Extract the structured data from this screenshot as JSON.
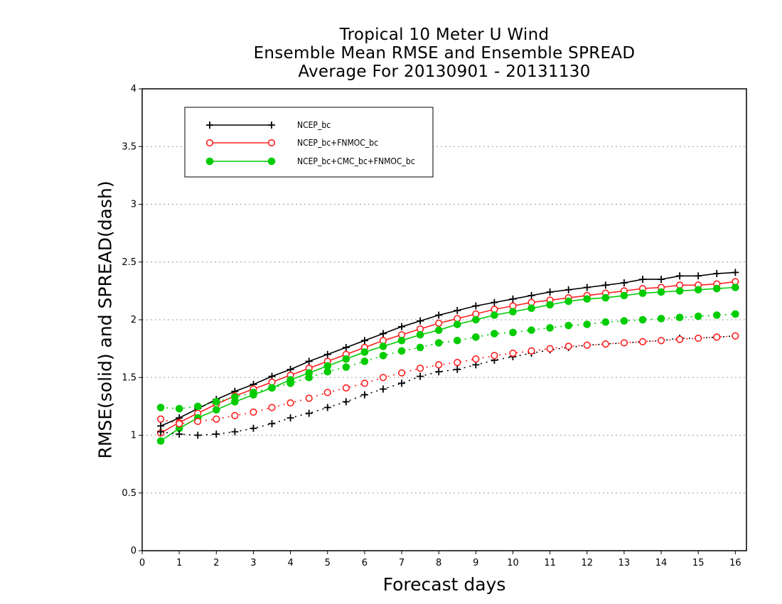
{
  "chart_data": {
    "type": "line",
    "title": [
      "Tropical 10 Meter U Wind",
      "Ensemble Mean RMSE and Ensemble SPREAD",
      "Average For 20130901 - 20131130"
    ],
    "xlabel": "Forecast days",
    "ylabel": "RMSE(solid) and SPREAD(dash)",
    "xlim": [
      0,
      16.3
    ],
    "ylim": [
      0,
      4
    ],
    "xticks": [
      0,
      1,
      2,
      3,
      4,
      5,
      6,
      7,
      8,
      9,
      10,
      11,
      12,
      13,
      14,
      15,
      16
    ],
    "yticks": [
      0,
      0.5,
      1,
      1.5,
      2,
      2.5,
      3,
      3.5,
      4
    ],
    "ytick_labels": [
      "0",
      "0.5",
      "1",
      "1.5",
      "2",
      "2.5",
      "3",
      "3.5",
      "4"
    ],
    "grid": "horizontal dotted",
    "legend_position": "top-left",
    "x": [
      0.5,
      1,
      1.5,
      2,
      2.5,
      3,
      3.5,
      4,
      4.5,
      5,
      5.5,
      6,
      6.5,
      7,
      7.5,
      8,
      8.5,
      9,
      9.5,
      10,
      10.5,
      11,
      11.5,
      12,
      12.5,
      13,
      13.5,
      14,
      14.5,
      15,
      15.5,
      16
    ],
    "series": [
      {
        "name": "NCEP_bc",
        "color": "#000000",
        "marker": "plus",
        "style": "solid",
        "values": [
          1.08,
          1.15,
          1.23,
          1.31,
          1.38,
          1.44,
          1.51,
          1.57,
          1.64,
          1.7,
          1.76,
          1.82,
          1.88,
          1.94,
          1.99,
          2.04,
          2.08,
          2.12,
          2.15,
          2.18,
          2.21,
          2.24,
          2.26,
          2.28,
          2.3,
          2.32,
          2.35,
          2.35,
          2.38,
          2.38,
          2.4,
          2.41
        ]
      },
      {
        "name": "NCEP_bc+FNMOC_bc",
        "color": "#ff2020",
        "marker": "open-circle",
        "style": "solid",
        "values": [
          1.02,
          1.11,
          1.19,
          1.27,
          1.34,
          1.4,
          1.46,
          1.52,
          1.58,
          1.64,
          1.7,
          1.76,
          1.82,
          1.87,
          1.92,
          1.97,
          2.01,
          2.05,
          2.09,
          2.12,
          2.15,
          2.17,
          2.19,
          2.21,
          2.23,
          2.25,
          2.27,
          2.28,
          2.3,
          2.3,
          2.31,
          2.33
        ]
      },
      {
        "name": "NCEP_bc+CMC_bc+FNMOC_bc",
        "color": "#00cc00",
        "marker": "filled-circle",
        "style": "solid",
        "values": [
          0.95,
          1.06,
          1.15,
          1.22,
          1.29,
          1.35,
          1.41,
          1.48,
          1.54,
          1.6,
          1.66,
          1.72,
          1.77,
          1.82,
          1.87,
          1.91,
          1.96,
          2.0,
          2.04,
          2.07,
          2.1,
          2.13,
          2.16,
          2.18,
          2.19,
          2.21,
          2.23,
          2.24,
          2.25,
          2.26,
          2.27,
          2.28
        ]
      },
      {
        "name": "NCEP_bc spread",
        "color": "#000000",
        "marker": "plus",
        "style": "dash",
        "values": [
          1.03,
          1.01,
          1.0,
          1.01,
          1.03,
          1.06,
          1.1,
          1.15,
          1.19,
          1.24,
          1.29,
          1.35,
          1.4,
          1.45,
          1.51,
          1.55,
          1.57,
          1.61,
          1.65,
          1.68,
          1.71,
          1.74,
          1.76,
          1.78,
          1.79,
          1.8,
          1.81,
          1.82,
          1.84,
          1.84,
          1.85,
          1.86
        ]
      },
      {
        "name": "NCEP_bc+FNMOC_bc spread",
        "color": "#ff2020",
        "marker": "open-circle",
        "style": "dash",
        "values": [
          1.14,
          1.1,
          1.12,
          1.14,
          1.17,
          1.2,
          1.24,
          1.28,
          1.32,
          1.37,
          1.41,
          1.45,
          1.5,
          1.54,
          1.58,
          1.61,
          1.63,
          1.66,
          1.69,
          1.71,
          1.73,
          1.75,
          1.77,
          1.78,
          1.79,
          1.8,
          1.81,
          1.82,
          1.83,
          1.84,
          1.85,
          1.86
        ]
      },
      {
        "name": "NCEP_bc+CMC_bc+FNMOC_bc spread",
        "color": "#00cc00",
        "marker": "filled-circle",
        "style": "dash",
        "values": [
          1.24,
          1.23,
          1.25,
          1.29,
          1.33,
          1.37,
          1.41,
          1.45,
          1.5,
          1.55,
          1.59,
          1.64,
          1.69,
          1.73,
          1.76,
          1.8,
          1.82,
          1.85,
          1.88,
          1.89,
          1.91,
          1.93,
          1.95,
          1.96,
          1.98,
          1.99,
          2.0,
          2.01,
          2.02,
          2.03,
          2.04,
          2.05
        ]
      }
    ],
    "legend": [
      {
        "label": "NCEP_bc",
        "color": "#000000",
        "marker": "plus"
      },
      {
        "label": "NCEP_bc+FNMOC_bc",
        "color": "#ff2020",
        "marker": "open-circle"
      },
      {
        "label": "NCEP_bc+CMC_bc+FNMOC_bc",
        "color": "#00cc00",
        "marker": "filled-circle"
      }
    ]
  }
}
